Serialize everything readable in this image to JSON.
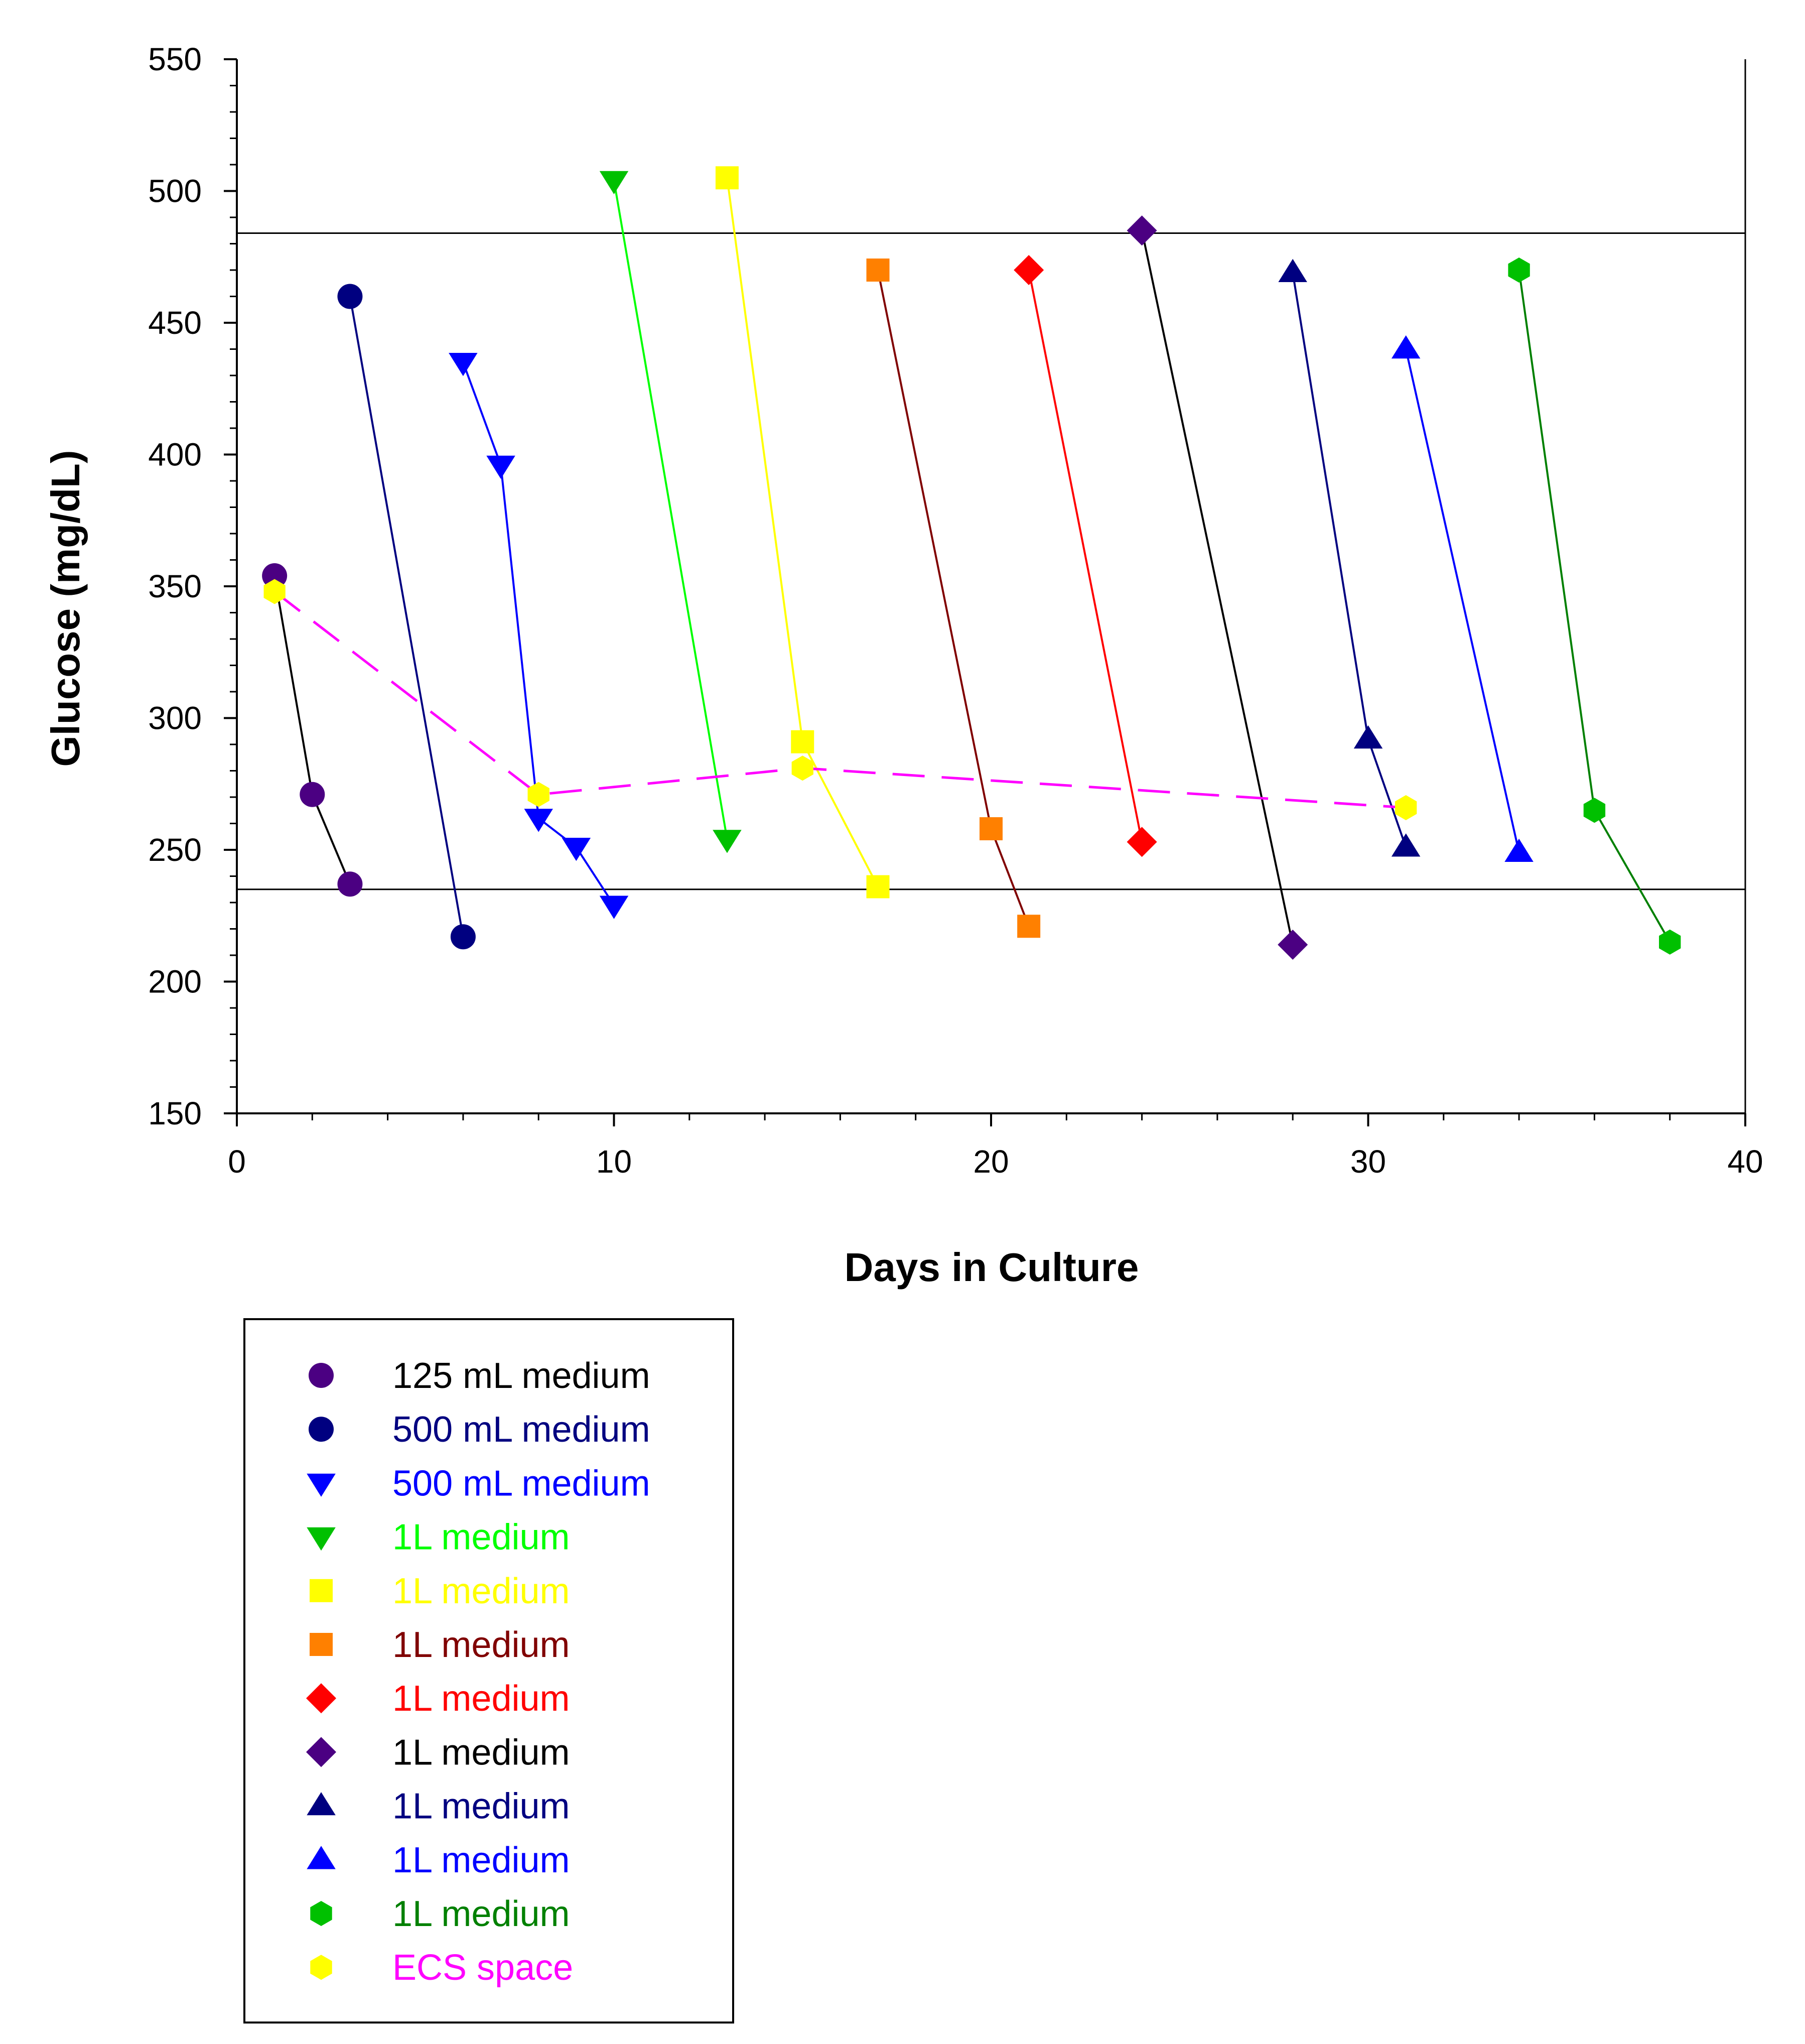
{
  "chart_data": {
    "type": "scatter",
    "xlabel": "Days in Culture",
    "ylabel": "Glucose (mg/dL)",
    "xlim": [
      0,
      40
    ],
    "ylim": [
      150,
      550
    ],
    "x_ticks": [
      "0",
      "10",
      "20",
      "30",
      "40"
    ],
    "y_ticks": [
      "150",
      "200",
      "250",
      "300",
      "350",
      "400",
      "450",
      "500",
      "550"
    ],
    "grid": false,
    "legend_position": "below",
    "reference_lines": [
      484,
      235
    ],
    "series": [
      {
        "name": "125 mL medium",
        "marker": "circle",
        "color": "#4b0082",
        "line_color": "#000000",
        "text_color": "#000000",
        "dashed": false,
        "points": [
          [
            1,
            354
          ],
          [
            2,
            271
          ],
          [
            3,
            237
          ]
        ]
      },
      {
        "name": "500 mL medium",
        "marker": "circle",
        "color": "#000080",
        "line_color": "#000080",
        "text_color": "#000080",
        "dashed": false,
        "points": [
          [
            3,
            460
          ],
          [
            6,
            217
          ]
        ]
      },
      {
        "name": "500 mL medium",
        "marker": "triangle-down",
        "color": "#0000ff",
        "line_color": "#0000ff",
        "text_color": "#0000ff",
        "dashed": false,
        "points": [
          [
            6,
            435
          ],
          [
            7,
            396
          ],
          [
            8,
            262
          ],
          [
            9,
            251
          ],
          [
            10,
            229
          ]
        ]
      },
      {
        "name": "1L medium",
        "marker": "triangle-down",
        "color": "#00c000",
        "line_color": "#00ff00",
        "text_color": "#00ff00",
        "dashed": false,
        "points": [
          [
            10,
            504
          ],
          [
            13,
            254
          ]
        ]
      },
      {
        "name": "1L medium",
        "marker": "square",
        "color": "#ffff00",
        "line_color": "#ffff00",
        "text_color": "#ffff00",
        "dashed": false,
        "points": [
          [
            13,
            505
          ],
          [
            15,
            291
          ],
          [
            17,
            236
          ]
        ]
      },
      {
        "name": "1L medium",
        "marker": "square",
        "color": "#ff8000",
        "line_color": "#800000",
        "text_color": "#800000",
        "dashed": false,
        "points": [
          [
            17,
            470
          ],
          [
            20,
            258
          ],
          [
            21,
            221
          ]
        ]
      },
      {
        "name": "1L medium",
        "marker": "diamond",
        "color": "#ff0000",
        "line_color": "#ff0000",
        "text_color": "#ff0000",
        "dashed": false,
        "points": [
          [
            21,
            470
          ],
          [
            24,
            253
          ]
        ]
      },
      {
        "name": "1L medium",
        "marker": "diamond",
        "color": "#4b0082",
        "line_color": "#000000",
        "text_color": "#000000",
        "dashed": false,
        "points": [
          [
            24,
            485
          ],
          [
            28,
            214
          ]
        ]
      },
      {
        "name": "1L medium",
        "marker": "triangle-up",
        "color": "#000080",
        "line_color": "#000080",
        "text_color": "#000080",
        "dashed": false,
        "points": [
          [
            28,
            469
          ],
          [
            30,
            292
          ],
          [
            31,
            251
          ]
        ]
      },
      {
        "name": "1L medium",
        "marker": "triangle-up",
        "color": "#0000ff",
        "line_color": "#0000ff",
        "text_color": "#0000ff",
        "dashed": false,
        "points": [
          [
            31,
            440
          ],
          [
            34,
            249
          ]
        ]
      },
      {
        "name": "1L medium",
        "marker": "hexagon",
        "color": "#00c000",
        "line_color": "#008000",
        "text_color": "#008000",
        "dashed": false,
        "points": [
          [
            34,
            470
          ],
          [
            36,
            265
          ],
          [
            38,
            215
          ]
        ]
      },
      {
        "name": "ECS space",
        "marker": "hexagon",
        "color": "#ffff00",
        "line_color": "#ff00ff",
        "text_color": "#ff00ff",
        "dashed": true,
        "points": [
          [
            1,
            348
          ],
          [
            8,
            271
          ],
          [
            15,
            281
          ],
          [
            31,
            266
          ]
        ]
      }
    ]
  }
}
